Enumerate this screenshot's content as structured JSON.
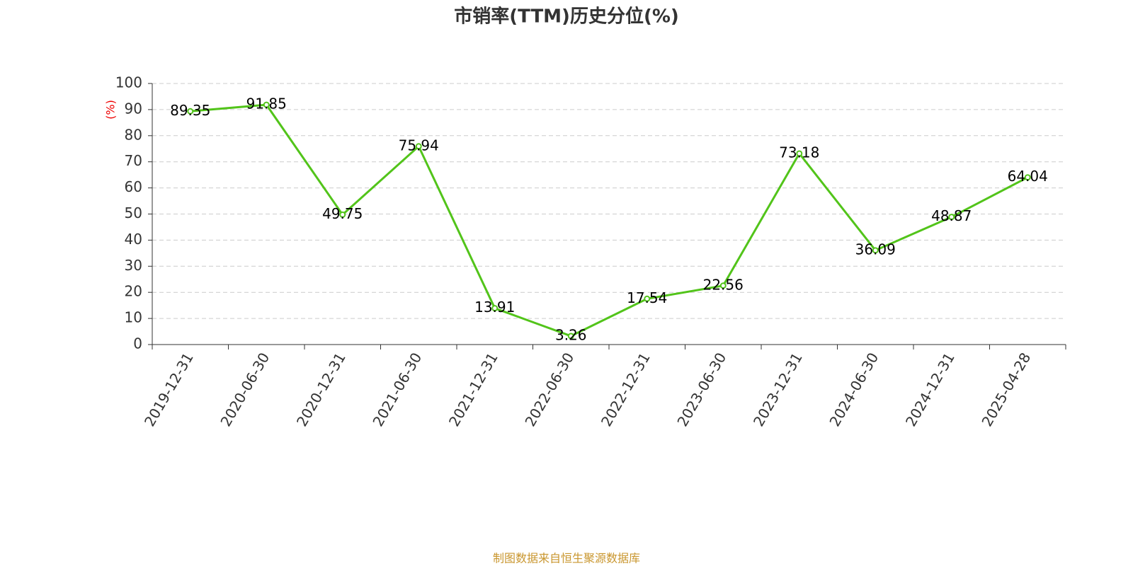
{
  "chart_data": {
    "type": "line",
    "title": "市销率(TTM)历史分位(%)",
    "y_label": "(%)",
    "source": "制图数据来自恒生聚源数据库",
    "categories": [
      "2019-12-31",
      "2020-06-30",
      "2020-12-31",
      "2021-06-30",
      "2021-12-31",
      "2022-06-30",
      "2022-12-31",
      "2023-06-30",
      "2023-12-31",
      "2024-06-30",
      "2024-12-31",
      "2025-04-28"
    ],
    "series": [
      {
        "color": "#52c41a",
        "values": [
          89.35,
          91.85,
          49.75,
          75.94,
          13.91,
          3.26,
          17.54,
          22.56,
          73.18,
          36.09,
          48.87,
          64.04
        ]
      }
    ],
    "ylim": [
      0,
      100
    ],
    "yticks": [
      0,
      10,
      20,
      30,
      40,
      50,
      60,
      70,
      80,
      90,
      100
    ],
    "grid": true
  }
}
